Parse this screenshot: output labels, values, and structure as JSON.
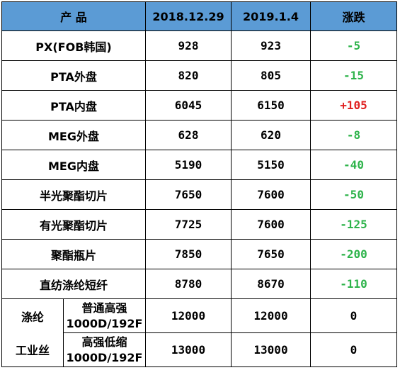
{
  "header": {
    "product": "产 品",
    "date1": "2018.12.29",
    "date2": "2019.1.4",
    "change": "涨跌"
  },
  "rows": [
    {
      "product": "PX(FOB韩国)",
      "v1": "928",
      "v2": "923",
      "chg": "-5"
    },
    {
      "product": "PTA外盘",
      "v1": "820",
      "v2": "805",
      "chg": "-15"
    },
    {
      "product": "PTA内盘",
      "v1": "6045",
      "v2": "6150",
      "chg": "+105"
    },
    {
      "product": "MEG外盘",
      "v1": "628",
      "v2": "620",
      "chg": "-8"
    },
    {
      "product": "MEG内盘",
      "v1": "5190",
      "v2": "5150",
      "chg": "-40"
    },
    {
      "product": "半光聚酯切片",
      "v1": "7650",
      "v2": "7600",
      "chg": "-50"
    },
    {
      "product": "有光聚酯切片",
      "v1": "7725",
      "v2": "7600",
      "chg": "-125"
    },
    {
      "product": "聚酯瓶片",
      "v1": "7850",
      "v2": "7650",
      "chg": "-200"
    },
    {
      "product": "直纺涤纶短纤",
      "v1": "8780",
      "v2": "8670",
      "chg": "-110"
    }
  ],
  "polyester": {
    "group_line1": "涤纶",
    "group_line2": "工业丝",
    "rows": [
      {
        "type": "普通高强",
        "spec": "1000D/192F",
        "v1": "12000",
        "v2": "12000",
        "chg": "0"
      },
      {
        "type": "高强低缩",
        "spec": "1000D/192F",
        "v1": "13000",
        "v2": "13000",
        "chg": "0"
      }
    ]
  },
  "colors": {
    "header_bg": "#5b9bd5",
    "down": "#2db34a",
    "up": "#e02020"
  }
}
